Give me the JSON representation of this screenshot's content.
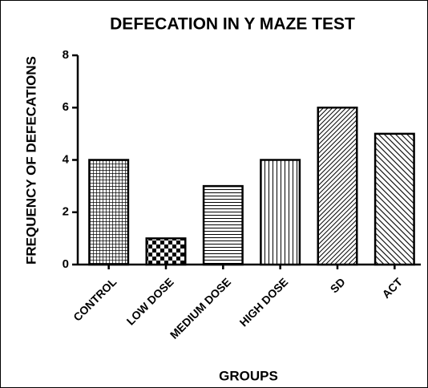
{
  "chart_data": {
    "type": "bar",
    "title": "DEFECATION IN Y MAZE TEST",
    "x_label": "GROUPS",
    "y_label": "FREQUENCY OF DEFECATIONS",
    "categories": [
      "CONTROL",
      "LOW DOSE",
      "MEDIUM DOSE",
      "HIGH DOSE",
      "SD",
      "ACT"
    ],
    "values": [
      4,
      1,
      3,
      4,
      6,
      5
    ],
    "color": "#000000",
    "ylim": [
      0,
      8
    ],
    "yticks": [
      0,
      2,
      4,
      6,
      8
    ],
    "grid": false
  }
}
